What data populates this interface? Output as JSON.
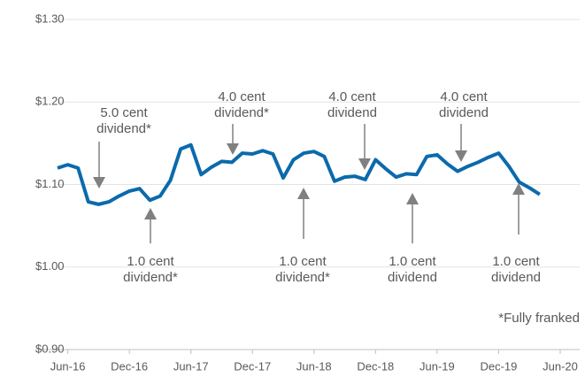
{
  "chart_data": {
    "type": "line",
    "x": [
      -1,
      0,
      1,
      2,
      3,
      4,
      5,
      6,
      7,
      8,
      9,
      10,
      11,
      12,
      13,
      14,
      15,
      16,
      17,
      18,
      19,
      20,
      21,
      22,
      23,
      24,
      25,
      26,
      27,
      28,
      29,
      30,
      31,
      32,
      33,
      34,
      35,
      36,
      37,
      38,
      39,
      40,
      41,
      42,
      43,
      44,
      45,
      46
    ],
    "series": [
      {
        "color": "#0b6aac",
        "values": [
          1.12,
          1.124,
          1.12,
          1.079,
          1.076,
          1.079,
          1.086,
          1.092,
          1.095,
          1.081,
          1.086,
          1.105,
          1.143,
          1.148,
          1.112,
          1.121,
          1.128,
          1.127,
          1.138,
          1.137,
          1.141,
          1.137,
          1.108,
          1.13,
          1.138,
          1.14,
          1.134,
          1.104,
          1.109,
          1.11,
          1.106,
          1.13,
          1.119,
          1.109,
          1.113,
          1.112,
          1.134,
          1.136,
          1.125,
          1.116,
          1.122,
          1.127,
          1.133,
          1.138,
          1.122,
          1.103,
          1.096,
          1.088
        ]
      }
    ],
    "xlim": [
      -1,
      48
    ],
    "xticks": [
      {
        "value": 0,
        "label": "Jun-16"
      },
      {
        "value": 6,
        "label": "Dec-16"
      },
      {
        "value": 12,
        "label": "Jun-17"
      },
      {
        "value": 18,
        "label": "Dec-17"
      },
      {
        "value": 24,
        "label": "Jun-18"
      },
      {
        "value": 30,
        "label": "Dec-18"
      },
      {
        "value": 36,
        "label": "Jun-19"
      },
      {
        "value": 42,
        "label": "Dec-19"
      },
      {
        "value": 48,
        "label": "Jun-20"
      }
    ],
    "ylim": [
      0.9,
      1.3
    ],
    "yticks": [
      {
        "value": 0.9,
        "label": "$0.90"
      },
      {
        "value": 1.0,
        "label": "$1.00"
      },
      {
        "value": 1.1,
        "label": "$1.10"
      },
      {
        "value": 1.2,
        "label": "$1.20"
      },
      {
        "value": 1.3,
        "label": "$1.30"
      }
    ],
    "grid": true,
    "annotations": [
      {
        "lines": [
          "5.0 cent",
          "dividend*"
        ]
      },
      {
        "lines": [
          "1.0 cent",
          "dividend*"
        ]
      },
      {
        "lines": [
          "4.0 cent",
          "dividend*"
        ]
      },
      {
        "lines": [
          "1.0 cent",
          "dividend*"
        ]
      },
      {
        "lines": [
          "4.0 cent",
          "dividend"
        ]
      },
      {
        "lines": [
          "1.0 cent",
          "dividend"
        ]
      },
      {
        "lines": [
          "4.0 cent",
          "dividend"
        ]
      },
      {
        "lines": [
          "1.0 cent",
          "dividend"
        ]
      }
    ],
    "footnote": "*Fully franked"
  }
}
